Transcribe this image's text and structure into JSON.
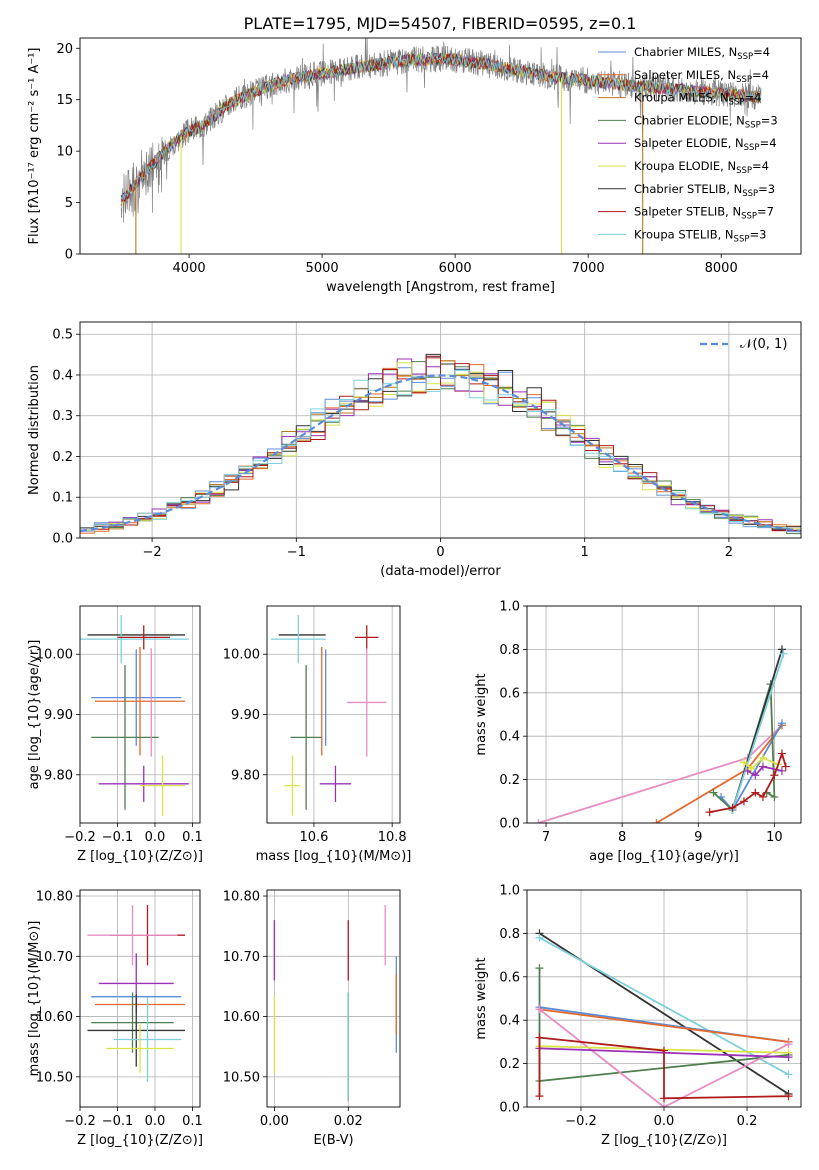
{
  "figure_title": "PLATE=1795, MJD=54507, FIBERID=0595, z=0.1",
  "chart_data": [
    {
      "id": "spectrum",
      "type": "line",
      "xlabel": "wavelength [Angstrom, rest frame]",
      "ylabel": "Flux [f$_\\lambda$10$^{-17}$ erg cm$^{-2}$ s$^{-1}$ A$^{-1}$]",
      "ylabel_text": "Flux [fλ10⁻¹⁷ erg cm⁻² s⁻¹ A⁻¹]",
      "xlim": [
        3180,
        8600
      ],
      "ylim": [
        0,
        21
      ],
      "xticks": [
        4000,
        5000,
        6000,
        7000,
        8000
      ],
      "yticks": [
        0,
        5,
        10,
        15,
        20
      ],
      "grid": false,
      "legend_position": "right",
      "data_shape": {
        "x": [
          3490,
          3600,
          3700,
          3800,
          3900,
          3980,
          4100,
          4200,
          4300,
          4400,
          4500,
          4700,
          4900,
          5100,
          5300,
          5500,
          5700,
          5900,
          6100,
          6300,
          6500,
          6700,
          6900,
          7100,
          7300,
          7500,
          7700,
          7900,
          8100,
          8300
        ],
        "y": [
          5.2,
          6.8,
          8.3,
          9.8,
          11.0,
          11.8,
          12.5,
          13.5,
          14.6,
          15.2,
          15.8,
          16.8,
          17.3,
          17.8,
          18.2,
          18.6,
          18.9,
          19.0,
          18.7,
          18.3,
          17.8,
          17.3,
          17.0,
          16.7,
          16.4,
          16.2,
          16.0,
          15.7,
          15.5,
          15.2
        ]
      },
      "dips": [
        {
          "x": 3600,
          "y": 0,
          "series": "Kroupa MILES"
        },
        {
          "x": 3940,
          "y": 0,
          "series": "Kroupa ELODIE"
        },
        {
          "x": 6800,
          "y": 0,
          "series": "Kroupa ELODIE"
        },
        {
          "x": 7410,
          "y": 0,
          "series": "Kroupa MILES"
        }
      ],
      "series": [
        {
          "name": "Chabrier MILES, N$_{SSP}$=4",
          "label": "Chabrier MILES, N",
          "sub": "SSP",
          "tail": "=4",
          "color": "#5b8bd9"
        },
        {
          "name": "Salpeter MILES, N$_{SSP}$=4",
          "label": "Salpeter MILES, N",
          "sub": "SSP",
          "tail": "=4",
          "color": "#e36a2e"
        },
        {
          "name": "Kroupa MILES, N$_{SSP}$=4",
          "label": "Kroupa MILES, N",
          "sub": "SSP",
          "tail": "=4",
          "color": "#b47a1c"
        },
        {
          "name": "Chabrier ELODIE, N$_{SSP}$=3",
          "label": "Chabrier ELODIE, N",
          "sub": "SSP",
          "tail": "=3",
          "color": "#4f7f4f"
        },
        {
          "name": "Salpeter ELODIE, N$_{SSP}$=4",
          "label": "Salpeter ELODIE, N",
          "sub": "SSP",
          "tail": "=4",
          "color": "#9a31b8"
        },
        {
          "name": "Kroupa ELODIE, N$_{SSP}$=4",
          "label": "Kroupa ELODIE, N",
          "sub": "SSP",
          "tail": "=4",
          "color": "#d9e34a"
        },
        {
          "name": "Chabrier STELIB, N$_{SSP}$=3",
          "label": "Chabrier STELIB, N",
          "sub": "SSP",
          "tail": "=3",
          "color": "#333333"
        },
        {
          "name": "Salpeter STELIB, N$_{SSP}$=7",
          "label": "Salpeter STELIB, N",
          "sub": "SSP",
          "tail": "=7",
          "color": "#b01c1c"
        },
        {
          "name": "Kroupa STELIB, N$_{SSP}$=3",
          "label": "Kroupa STELIB, N",
          "sub": "SSP",
          "tail": "=3",
          "color": "#7fd0dc"
        }
      ],
      "data_color": "#808080"
    },
    {
      "id": "residuals",
      "type": "line",
      "xlabel": "(data-model)/error",
      "ylabel": "Normed distribution",
      "xlim": [
        -2.5,
        2.5
      ],
      "ylim": [
        0,
        0.53
      ],
      "xticks": [
        -2,
        -1,
        0,
        1,
        2
      ],
      "yticks": [
        0.0,
        0.1,
        0.2,
        0.3,
        0.4,
        0.5
      ],
      "grid": true,
      "legend_position": "top-right",
      "reference_curve": {
        "name": "$\\mathcal{N}(0,1)$",
        "label": "𝒩(0, 1)",
        "color": "#5b8bd9"
      }
    },
    {
      "id": "age_vs_Z",
      "type": "scatter",
      "xlabel": "Z [log$_{10}$(Z/Z$_\\odot$)]",
      "ylabel": "age  [log$_{10}$(age/yr)]",
      "xlim": [
        -0.2,
        0.12
      ],
      "ylim": [
        9.72,
        10.08
      ],
      "xticks": [
        -0.2,
        -0.1,
        0.0,
        0.1
      ],
      "yticks": [
        9.8,
        9.9,
        10.0
      ],
      "grid": true,
      "points": [
        {
          "x": -0.05,
          "y": 10.032,
          "xerr": 0.13,
          "yerr": 0.0,
          "color": "#333333"
        },
        {
          "x": -0.09,
          "y": 10.025,
          "xerr": 0.18,
          "yerr": 0.04,
          "color": "#7fd0dc"
        },
        {
          "x": -0.03,
          "y": 10.028,
          "xerr": 0.07,
          "yerr": 0.02,
          "color": "#b01c1c"
        },
        {
          "x": -0.05,
          "y": 9.928,
          "xerr": 0.12,
          "yerr": 0.08,
          "color": "#5b8bd9"
        },
        {
          "x": -0.04,
          "y": 9.922,
          "xerr": 0.12,
          "yerr": 0.09,
          "color": "#e36a2e"
        },
        {
          "x": -0.08,
          "y": 9.862,
          "xerr": 0.09,
          "yerr": 0.12,
          "color": "#4f7f4f"
        },
        {
          "x": -0.03,
          "y": 9.785,
          "xerr": 0.12,
          "yerr": 0.03,
          "color": "#9a31b8"
        },
        {
          "x": 0.02,
          "y": 9.782,
          "xerr": 0.06,
          "yerr": 0.05,
          "color": "#d9e34a"
        },
        {
          "x": -0.01,
          "y": 9.92,
          "xerr": 0.0,
          "yerr": 0.09,
          "color": "#e88dc4"
        }
      ]
    },
    {
      "id": "age_vs_mass",
      "type": "scatter",
      "xlabel": "mass [log$_{10}$(M/M$_\\odot$)]",
      "ylabel": "",
      "xlim": [
        10.48,
        10.82
      ],
      "ylim": [
        9.72,
        10.08
      ],
      "xticks": [
        10.6,
        10.8
      ],
      "yticks": [
        9.8,
        9.9,
        10.0
      ],
      "grid": true,
      "points": [
        {
          "x": 10.57,
          "y": 10.032,
          "xerr": 0.06,
          "yerr": 0.0,
          "color": "#333333"
        },
        {
          "x": 10.56,
          "y": 10.025,
          "xerr": 0.07,
          "yerr": 0.04,
          "color": "#7fd0dc"
        },
        {
          "x": 10.735,
          "y": 10.028,
          "xerr": 0.03,
          "yerr": 0.02,
          "color": "#b01c1c"
        },
        {
          "x": 10.63,
          "y": 9.928,
          "xerr": 0.0,
          "yerr": 0.08,
          "color": "#5b8bd9"
        },
        {
          "x": 10.62,
          "y": 9.922,
          "xerr": 0.0,
          "yerr": 0.09,
          "color": "#e36a2e"
        },
        {
          "x": 10.58,
          "y": 9.862,
          "xerr": 0.04,
          "yerr": 0.12,
          "color": "#4f7f4f"
        },
        {
          "x": 10.655,
          "y": 9.785,
          "xerr": 0.04,
          "yerr": 0.03,
          "color": "#9a31b8"
        },
        {
          "x": 10.545,
          "y": 9.782,
          "xerr": 0.02,
          "yerr": 0.05,
          "color": "#d9e34a"
        },
        {
          "x": 10.735,
          "y": 9.92,
          "xerr": 0.05,
          "yerr": 0.09,
          "color": "#e88dc4"
        }
      ]
    },
    {
      "id": "mass_weight_vs_age",
      "type": "line",
      "xlabel": "age  [log$_{10}$(age/yr)]",
      "ylabel": "mass weight",
      "xlim": [
        6.75,
        10.35
      ],
      "ylim": [
        0.0,
        1.0
      ],
      "xticks": [
        7,
        8,
        9,
        10
      ],
      "yticks": [
        0.0,
        0.2,
        0.4,
        0.6,
        0.8,
        1.0
      ],
      "grid": true,
      "series": [
        {
          "color": "#e88dc4",
          "x": [
            6.9,
            9.65,
            10.1
          ],
          "y": [
            0.0,
            0.3,
            0.45
          ]
        },
        {
          "color": "#e36a2e",
          "x": [
            8.45,
            9.65,
            10.1
          ],
          "y": [
            0.0,
            0.25,
            0.45
          ]
        },
        {
          "color": "#5b8bd9",
          "x": [
            9.3,
            9.45,
            10.1
          ],
          "y": [
            0.12,
            0.06,
            0.46
          ]
        },
        {
          "color": "#4f7f4f",
          "x": [
            9.2,
            9.45,
            9.95,
            10.0,
            9.9
          ],
          "y": [
            0.14,
            0.06,
            0.64,
            0.12,
            0.14
          ]
        },
        {
          "color": "#333333",
          "x": [
            9.45,
            10.1
          ],
          "y": [
            0.06,
            0.8
          ]
        },
        {
          "color": "#7fd0dc",
          "x": [
            9.45,
            10.12
          ],
          "y": [
            0.06,
            0.78
          ]
        },
        {
          "color": "#9a31b8",
          "x": [
            9.65,
            9.75,
            9.85,
            10.1
          ],
          "y": [
            0.24,
            0.22,
            0.26,
            0.24
          ]
        },
        {
          "color": "#d9e34a",
          "x": [
            9.6,
            9.7,
            9.85,
            10.05
          ],
          "y": [
            0.28,
            0.25,
            0.3,
            0.27
          ]
        },
        {
          "color": "#b01c1c",
          "x": [
            9.15,
            9.45,
            9.6,
            9.75,
            9.85,
            10.0,
            10.1,
            10.15
          ],
          "y": [
            0.05,
            0.07,
            0.1,
            0.14,
            0.12,
            0.22,
            0.32,
            0.26
          ]
        }
      ]
    },
    {
      "id": "mass_vs_Z",
      "type": "scatter",
      "xlabel": "Z [log$_{10}$(Z/Z$_\\odot$)]",
      "ylabel": "mass [log$_{10}$(M/M$_\\odot$)]",
      "xlim": [
        -0.2,
        0.12
      ],
      "ylim": [
        10.45,
        10.81
      ],
      "xticks": [
        -0.2,
        -0.1,
        0.0,
        0.1
      ],
      "yticks": [
        10.5,
        10.6,
        10.7,
        10.8
      ],
      "grid": true,
      "points": [
        {
          "x": -0.02,
          "y": 10.735,
          "xerr": 0.1,
          "yerr": 0.05,
          "color": "#b01c1c"
        },
        {
          "x": -0.06,
          "y": 10.735,
          "xerr": 0.12,
          "yerr": 0.05,
          "color": "#e88dc4"
        },
        {
          "x": -0.05,
          "y": 10.655,
          "xerr": 0.1,
          "yerr": 0.05,
          "color": "#9a31b8"
        },
        {
          "x": -0.05,
          "y": 10.633,
          "xerr": 0.12,
          "yerr": 0.0,
          "color": "#5b8bd9"
        },
        {
          "x": -0.04,
          "y": 10.62,
          "xerr": 0.12,
          "yerr": 0.0,
          "color": "#e36a2e"
        },
        {
          "x": -0.06,
          "y": 10.59,
          "xerr": 0.11,
          "yerr": 0.05,
          "color": "#4f7f4f"
        },
        {
          "x": -0.05,
          "y": 10.577,
          "xerr": 0.13,
          "yerr": 0.06,
          "color": "#333333"
        },
        {
          "x": -0.02,
          "y": 10.562,
          "xerr": 0.09,
          "yerr": 0.07,
          "color": "#7fd0dc"
        },
        {
          "x": -0.04,
          "y": 10.547,
          "xerr": 0.09,
          "yerr": 0.04,
          "color": "#d9e34a"
        }
      ]
    },
    {
      "id": "mass_vs_EBV",
      "type": "scatter",
      "xlabel": "E(B-V)",
      "ylabel": "",
      "xlim": [
        -0.002,
        0.034
      ],
      "ylim": [
        10.45,
        10.81
      ],
      "xticks": [
        0.0,
        0.02
      ],
      "yticks": [
        10.5,
        10.6,
        10.7,
        10.8
      ],
      "grid": true,
      "points": [
        {
          "x": 0.0,
          "y": 10.71,
          "xerr": 0.0,
          "yerr": 0.05,
          "color": "#9a31b8"
        },
        {
          "x": 0.0,
          "y": 10.57,
          "xerr": 0.0,
          "yerr": 0.065,
          "color": "#d9e34a"
        },
        {
          "x": 0.02,
          "y": 10.71,
          "xerr": 0.0,
          "yerr": 0.05,
          "color": "#b01c1c"
        },
        {
          "x": 0.02,
          "y": 10.55,
          "xerr": 0.0,
          "yerr": 0.09,
          "color": "#333333"
        },
        {
          "x": 0.02,
          "y": 10.55,
          "xerr": 0.0,
          "yerr": 0.09,
          "color": "#7fd0dc"
        },
        {
          "x": 0.03,
          "y": 10.735,
          "xerr": 0.0,
          "yerr": 0.05,
          "color": "#e88dc4"
        },
        {
          "x": 0.033,
          "y": 10.62,
          "xerr": 0.0,
          "yerr": 0.08,
          "color": "#5b8bd9"
        },
        {
          "x": 0.033,
          "y": 10.62,
          "xerr": 0.0,
          "yerr": 0.05,
          "color": "#e36a2e"
        }
      ]
    },
    {
      "id": "mass_weight_vs_Z",
      "type": "line",
      "xlabel": "Z [log$_{10}$(Z/Z$_\\odot$)]",
      "ylabel": "mass weight",
      "xlim": [
        -0.33,
        0.33
      ],
      "ylim": [
        0.0,
        1.0
      ],
      "xticks": [
        -0.2,
        0.0,
        0.2
      ],
      "yticks": [
        0.0,
        0.2,
        0.4,
        0.6,
        0.8,
        1.0
      ],
      "grid": true,
      "series": [
        {
          "color": "#333333",
          "x": [
            -0.3,
            0.3
          ],
          "y": [
            0.8,
            0.06
          ]
        },
        {
          "color": "#7fd0dc",
          "x": [
            -0.3,
            0.3
          ],
          "y": [
            0.78,
            0.15
          ]
        },
        {
          "color": "#4f7f4f",
          "x": [
            -0.3,
            -0.3,
            0.3
          ],
          "y": [
            0.64,
            0.12,
            0.24
          ]
        },
        {
          "color": "#5b8bd9",
          "x": [
            -0.3,
            0.3
          ],
          "y": [
            0.46,
            0.3
          ]
        },
        {
          "color": "#e36a2e",
          "x": [
            -0.3,
            0.3
          ],
          "y": [
            0.45,
            0.3
          ]
        },
        {
          "color": "#e88dc4",
          "x": [
            -0.3,
            0.0,
            0.3
          ],
          "y": [
            0.45,
            0.0,
            0.29
          ]
        },
        {
          "color": "#d9e34a",
          "x": [
            -0.3,
            0.3
          ],
          "y": [
            0.28,
            0.25
          ]
        },
        {
          "color": "#9a31b8",
          "x": [
            -0.3,
            0.3
          ],
          "y": [
            0.27,
            0.23
          ]
        },
        {
          "color": "#b01c1c",
          "x": [
            -0.3,
            -0.3,
            0.0,
            0.0,
            0.3
          ],
          "y": [
            0.05,
            0.32,
            0.26,
            0.04,
            0.05
          ]
        }
      ]
    }
  ]
}
